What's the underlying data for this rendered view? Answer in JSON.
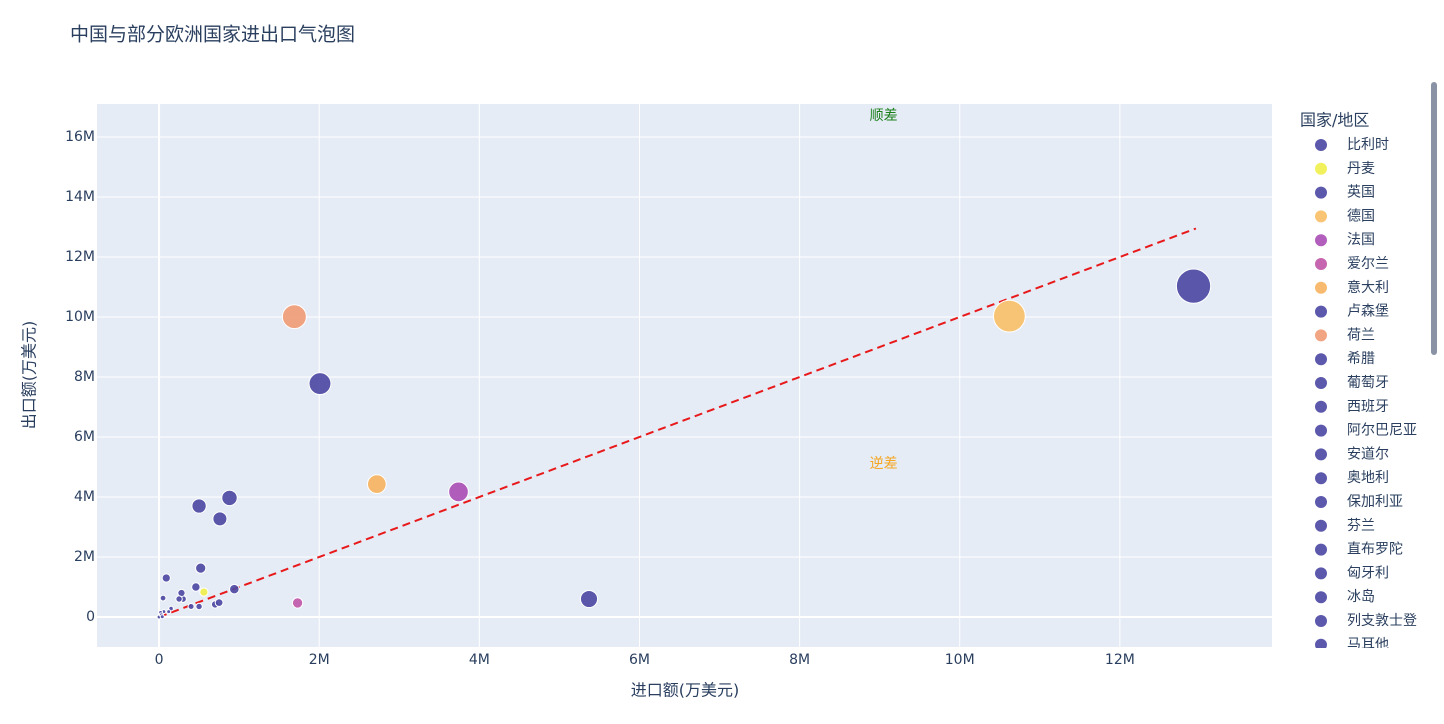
{
  "chart_data": {
    "type": "scatter",
    "title": "中国与部分欧洲国家进出口气泡图",
    "x_label": "进口额(万美元)",
    "y_label": "出口额(万美元)",
    "legend_title": "国家/地区",
    "xlim": [
      -775000,
      13900000
    ],
    "ylim": [
      -1000000,
      17100000
    ],
    "xticks": [
      0,
      {
        "value": 2000000,
        "label": "2M"
      },
      {
        "value": 4000000,
        "label": "4M"
      },
      {
        "value": 6000000,
        "label": "6M"
      },
      {
        "value": 8000000,
        "label": "8M"
      },
      {
        "value": 10000000,
        "label": "10M"
      },
      {
        "value": 12000000,
        "label": "12M"
      }
    ],
    "yticks": [
      0,
      {
        "value": 2000000,
        "label": "2M"
      },
      {
        "value": 4000000,
        "label": "4M"
      },
      {
        "value": 6000000,
        "label": "6M"
      },
      {
        "value": 8000000,
        "label": "8M"
      },
      {
        "value": 10000000,
        "label": "10M"
      },
      {
        "value": 12000000,
        "label": "12M"
      },
      {
        "value": 14000000,
        "label": "14M"
      },
      {
        "value": 16000000,
        "label": "16M"
      }
    ],
    "grid": true,
    "legend_position": "right",
    "series": [
      {
        "name": "比利时",
        "color": "#4a47a3",
        "x": [
          880000
        ],
        "y": [
          3970000
        ]
      },
      {
        "name": "丹麦",
        "color": "#eef04a",
        "x": [
          560000
        ],
        "y": [
          830000
        ]
      },
      {
        "name": "英国",
        "color": "#4a47a3",
        "x": [
          2010000
        ],
        "y": [
          7780000
        ]
      },
      {
        "name": "德国",
        "color": "#f8bf66",
        "x": [
          10620000
        ],
        "y": [
          10030000
        ]
      },
      {
        "name": "法国",
        "color": "#a84db5",
        "x": [
          3740000
        ],
        "y": [
          4170000
        ]
      },
      {
        "name": "爱尔兰",
        "color": "#c055a8",
        "x": [
          1730000
        ],
        "y": [
          470000
        ]
      },
      {
        "name": "意大利",
        "color": "#f6b25e",
        "x": [
          2720000
        ],
        "y": [
          4430000
        ]
      },
      {
        "name": "卢森堡",
        "color": "#4a47a3",
        "x": [
          60000
        ],
        "y": [
          180000
        ]
      },
      {
        "name": "荷兰",
        "color": "#ef9b74",
        "x": [
          1690000
        ],
        "y": [
          10010000
        ]
      },
      {
        "name": "希腊",
        "color": "#4a47a3",
        "x": [
          90000
        ],
        "y": [
          1300000
        ]
      },
      {
        "name": "葡萄牙",
        "color": "#4a47a3",
        "x": [
          280000
        ],
        "y": [
          800000
        ]
      },
      {
        "name": "西班牙",
        "color": "#4a47a3",
        "x": [
          500000
        ],
        "y": [
          3700000
        ]
      },
      {
        "name": "阿尔巴尼亚",
        "color": "#4a47a3",
        "x": [
          10000
        ],
        "y": [
          20000
        ]
      },
      {
        "name": "安道尔",
        "color": "#4a47a3",
        "x": [
          0
        ],
        "y": [
          0
        ]
      },
      {
        "name": "奥地利",
        "color": "#4a47a3",
        "x": [
          940000
        ],
        "y": [
          930000
        ]
      },
      {
        "name": "保加利亚",
        "color": "#4a47a3",
        "x": [
          250000
        ],
        "y": [
          600000
        ]
      },
      {
        "name": "芬兰",
        "color": "#4a47a3",
        "x": [
          750000
        ],
        "y": [
          480000
        ]
      },
      {
        "name": "直布罗陀",
        "color": "#4a47a3",
        "x": [
          20000
        ],
        "y": [
          150000
        ]
      },
      {
        "name": "匈牙利",
        "color": "#4a47a3",
        "x": [
          520000
        ],
        "y": [
          1630000
        ]
      },
      {
        "name": "冰岛",
        "color": "#4a47a3",
        "x": [
          30000
        ],
        "y": [
          70000
        ]
      },
      {
        "name": "列支敦士登",
        "color": "#4a47a3",
        "x": [
          40000
        ],
        "y": [
          10000
        ]
      },
      {
        "name": "马耳他",
        "color": "#4a47a3",
        "x": [
          50000
        ],
        "y": [
          630000
        ]
      }
    ],
    "unlabeled_points": {
      "color": "#4a47a3",
      "x": [
        12920000,
        5370000,
        760000,
        460000,
        700000,
        150000,
        400000,
        500000,
        300000,
        120000
      ],
      "y": [
        11030000,
        600000,
        3270000,
        1000000,
        420000,
        280000,
        350000,
        350000,
        600000,
        180000
      ]
    },
    "reference_line": {
      "color": "#e8191b",
      "x": [
        0,
        12950000
      ],
      "y": [
        0,
        12950000
      ]
    },
    "annotations": [
      {
        "text": "顺差",
        "x": 9050000,
        "y": 16700000,
        "color": "#1a7f1a"
      },
      {
        "text": "逆差",
        "x": 9050000,
        "y": 5100000,
        "color": "#f5a623"
      }
    ]
  }
}
